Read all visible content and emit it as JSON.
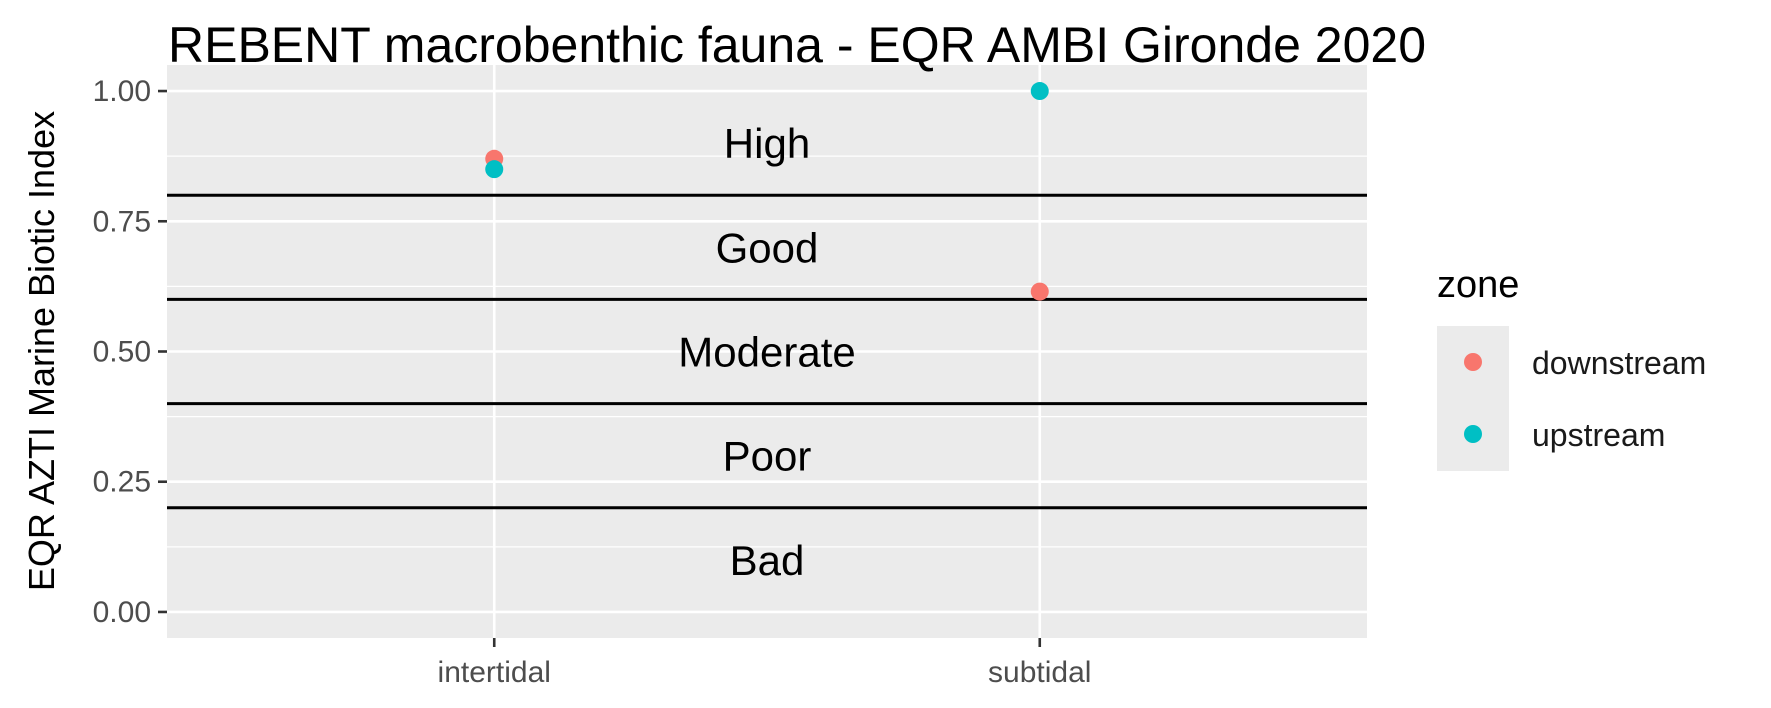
{
  "chart_data": {
    "type": "scatter",
    "title": "REBENT macrobenthic fauna - EQR AMBI Gironde 2020",
    "xlabel": "",
    "ylabel": "EQR AZTI Marine Biotic Index",
    "categories": [
      "intertidal",
      "subtidal"
    ],
    "ylim": [
      -0.05,
      1.05
    ],
    "yticks": [
      0.0,
      0.25,
      0.5,
      0.75,
      1.0
    ],
    "ytick_labels": [
      "0.00",
      "0.25",
      "0.50",
      "0.75",
      "1.00"
    ],
    "grid": true,
    "series": [
      {
        "name": "downstream",
        "color": "#F8766D",
        "values": [
          0.87,
          0.615
        ]
      },
      {
        "name": "upstream",
        "color": "#00BFC4",
        "values": [
          0.85,
          1.0
        ]
      }
    ],
    "thresholds": [
      0.8,
      0.6,
      0.4,
      0.2
    ],
    "bands": [
      {
        "label": "High",
        "y": 0.9
      },
      {
        "label": "Good",
        "y": 0.7
      },
      {
        "label": "Moderate",
        "y": 0.5
      },
      {
        "label": "Poor",
        "y": 0.3
      },
      {
        "label": "Bad",
        "y": 0.1
      }
    ],
    "legend": {
      "title": "zone",
      "position": "right"
    }
  },
  "colors": {
    "panel_background": "#EBEBEB",
    "grid": "#FFFFFF",
    "threshold_line": "#000000"
  }
}
